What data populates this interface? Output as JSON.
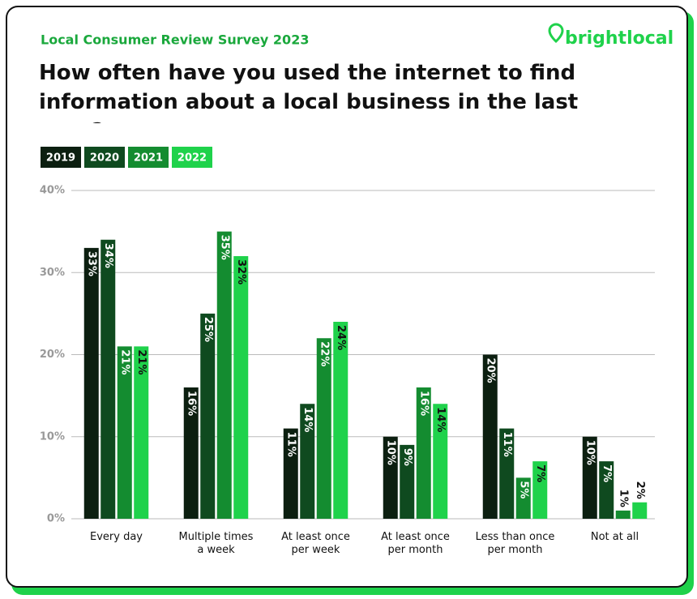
{
  "brand": "brightlocal",
  "chart_data": {
    "type": "bar",
    "subtitle": "Local Consumer Review Survey 2023",
    "title": "How often have you used the internet to find information about a local business in the last year?",
    "categories": [
      "Every day",
      "Multiple times\na week",
      "At least once\nper week",
      "At least once\nper month",
      "Less than once\nper month",
      "Not at all"
    ],
    "series": [
      {
        "name": "2019",
        "color": "#0c1f10",
        "values": [
          33,
          16,
          11,
          10,
          20,
          10
        ],
        "value_labels": [
          "33%",
          "16%",
          "11%",
          "10%",
          "20%",
          "10%"
        ]
      },
      {
        "name": "2020",
        "color": "#0f4a1f",
        "values": [
          34,
          25,
          14,
          9,
          11,
          7
        ],
        "value_labels": [
          "34%",
          "25%",
          "14%",
          "9%",
          "11%",
          "7%"
        ]
      },
      {
        "name": "2021",
        "color": "#148c30",
        "values": [
          21,
          35,
          22,
          16,
          5,
          1
        ],
        "value_labels": [
          "21%",
          "35%",
          "22%",
          "16%",
          "5%",
          "1%"
        ]
      },
      {
        "name": "2022",
        "color": "#1fd24b",
        "values": [
          21,
          32,
          24,
          14,
          7,
          2
        ],
        "value_labels": [
          "21%",
          "32%",
          "24%",
          "14%",
          "7%",
          "2%"
        ]
      }
    ],
    "ylim": [
      0,
      40
    ],
    "yticks": [
      {
        "value": 0,
        "label": "0%"
      },
      {
        "value": 10,
        "label": "10%"
      },
      {
        "value": 20,
        "label": "20%"
      },
      {
        "value": 30,
        "label": "30%"
      },
      {
        "value": 40,
        "label": "40%"
      }
    ],
    "grid": true
  }
}
